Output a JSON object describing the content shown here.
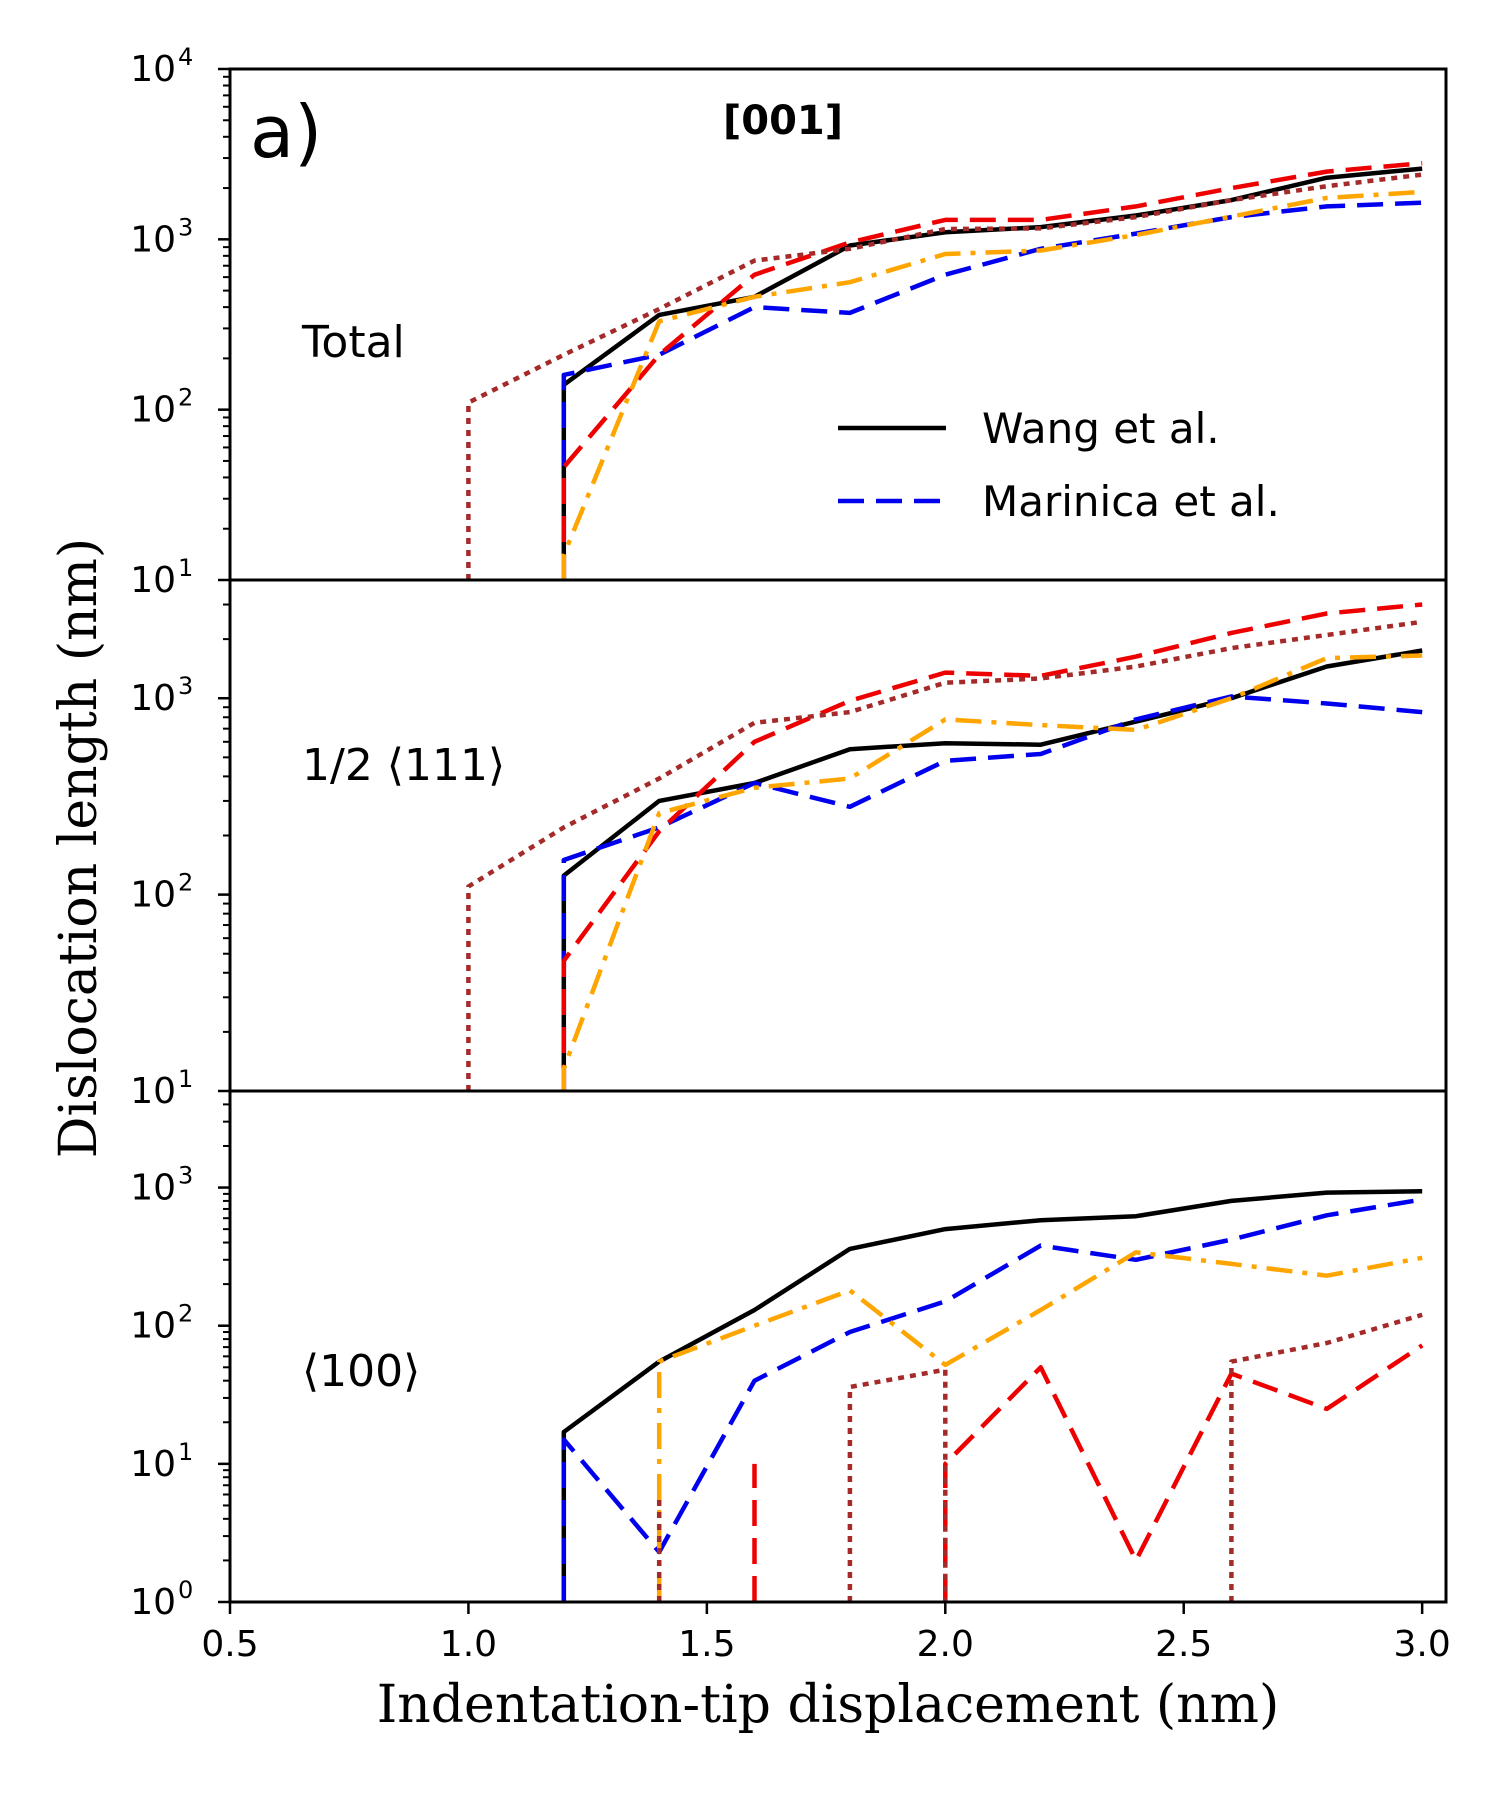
{
  "chart_data": {
    "type": "line",
    "figure_label": "a)",
    "title": "[001]",
    "xlabel": "Indentation-tip displacement (nm)",
    "ylabel": "Dislocation length (nm)",
    "xlim": [
      0.5,
      3.05
    ],
    "x_ticks": [
      "0.5",
      "1.0",
      "1.5",
      "2.0",
      "2.5",
      "3.0"
    ],
    "x_tick_values": [
      0.5,
      1.0,
      1.5,
      2.0,
      2.5,
      3.0
    ],
    "legend": {
      "placement": "center-right of top panel",
      "entries": [
        {
          "label": "Wang et al.",
          "series": "wang"
        },
        {
          "label": "Marinica et al.",
          "series": "marinica"
        }
      ]
    },
    "series_styles": {
      "wang": {
        "color": "#000000",
        "dash": "none"
      },
      "marinica": {
        "color": "#0000ee",
        "dash": "dashed"
      },
      "red": {
        "color": "#ee0000",
        "dash": "dashed"
      },
      "orange": {
        "color": "#ffa500",
        "dash": "dashdot"
      },
      "brown": {
        "color": "#a52a2a",
        "dash": "dotted"
      }
    },
    "panels": [
      {
        "label": "Total",
        "ylim": [
          10,
          10000
        ],
        "y_ticks": [
          {
            "base": "10",
            "exp": "1",
            "value": 10
          },
          {
            "base": "10",
            "exp": "2",
            "value": 100
          },
          {
            "base": "10",
            "exp": "3",
            "value": 1000
          },
          {
            "base": "10",
            "exp": "4",
            "value": 10000
          }
        ],
        "series": [
          {
            "key": "wang",
            "points": [
              [
                1.2,
                10
              ],
              [
                1.2,
                140
              ],
              [
                1.4,
                360
              ],
              [
                1.6,
                460
              ],
              [
                1.8,
                920
              ],
              [
                2.0,
                1100
              ],
              [
                2.2,
                1180
              ],
              [
                2.4,
                1380
              ],
              [
                2.6,
                1700
              ],
              [
                2.8,
                2300
              ],
              [
                3.0,
                2600
              ]
            ]
          },
          {
            "key": "marinica",
            "points": [
              [
                1.2,
                10
              ],
              [
                1.2,
                160
              ],
              [
                1.4,
                210
              ],
              [
                1.6,
                400
              ],
              [
                1.8,
                370
              ],
              [
                2.0,
                620
              ],
              [
                2.2,
                880
              ],
              [
                2.4,
                1080
              ],
              [
                2.6,
                1350
              ],
              [
                2.8,
                1560
              ],
              [
                3.0,
                1640
              ]
            ]
          },
          {
            "key": "red",
            "points": [
              [
                1.2,
                10
              ],
              [
                1.2,
                46
              ],
              [
                1.4,
                210
              ],
              [
                1.6,
                620
              ],
              [
                1.8,
                960
              ],
              [
                2.0,
                1300
              ],
              [
                2.2,
                1300
              ],
              [
                2.4,
                1560
              ],
              [
                2.6,
                2000
              ],
              [
                2.8,
                2500
              ],
              [
                3.0,
                2800
              ]
            ]
          },
          {
            "key": "orange",
            "points": [
              [
                1.2,
                10
              ],
              [
                1.2,
                14
              ],
              [
                1.4,
                330
              ],
              [
                1.6,
                460
              ],
              [
                1.8,
                560
              ],
              [
                2.0,
                820
              ],
              [
                2.2,
                860
              ],
              [
                2.4,
                1060
              ],
              [
                2.6,
                1360
              ],
              [
                2.8,
                1750
              ],
              [
                3.0,
                1900
              ]
            ]
          },
          {
            "key": "brown",
            "points": [
              [
                1.0,
                10
              ],
              [
                1.0,
                110
              ],
              [
                1.2,
                210
              ],
              [
                1.4,
                390
              ],
              [
                1.6,
                750
              ],
              [
                1.8,
                880
              ],
              [
                2.0,
                1150
              ],
              [
                2.2,
                1160
              ],
              [
                2.4,
                1350
              ],
              [
                2.6,
                1700
              ],
              [
                2.8,
                2050
              ],
              [
                3.0,
                2400
              ]
            ]
          }
        ]
      },
      {
        "label": "1/2 ⟨111⟩",
        "ylim": [
          10,
          4000
        ],
        "y_ticks": [
          {
            "base": "10",
            "exp": "1",
            "value": 10
          },
          {
            "base": "10",
            "exp": "2",
            "value": 100
          },
          {
            "base": "10",
            "exp": "3",
            "value": 1000
          }
        ],
        "series": [
          {
            "key": "wang",
            "points": [
              [
                1.2,
                10
              ],
              [
                1.2,
                125
              ],
              [
                1.4,
                300
              ],
              [
                1.6,
                370
              ],
              [
                1.8,
                550
              ],
              [
                2.0,
                590
              ],
              [
                2.2,
                580
              ],
              [
                2.4,
                760
              ],
              [
                2.6,
                1000
              ],
              [
                2.8,
                1450
              ],
              [
                3.0,
                1750
              ]
            ]
          },
          {
            "key": "marinica",
            "points": [
              [
                1.2,
                10
              ],
              [
                1.2,
                150
              ],
              [
                1.4,
                220
              ],
              [
                1.6,
                370
              ],
              [
                1.8,
                280
              ],
              [
                2.0,
                480
              ],
              [
                2.2,
                520
              ],
              [
                2.4,
                780
              ],
              [
                2.6,
                1020
              ],
              [
                2.8,
                940
              ],
              [
                3.0,
                850
              ]
            ]
          },
          {
            "key": "red",
            "points": [
              [
                1.2,
                10
              ],
              [
                1.2,
                46
              ],
              [
                1.4,
                210
              ],
              [
                1.6,
                600
              ],
              [
                1.8,
                970
              ],
              [
                2.0,
                1350
              ],
              [
                2.2,
                1300
              ],
              [
                2.4,
                1630
              ],
              [
                2.6,
                2150
              ],
              [
                2.8,
                2700
              ],
              [
                3.0,
                3000
              ]
            ]
          },
          {
            "key": "orange",
            "points": [
              [
                1.2,
                10
              ],
              [
                1.2,
                13
              ],
              [
                1.4,
                260
              ],
              [
                1.6,
                350
              ],
              [
                1.8,
                390
              ],
              [
                2.0,
                780
              ],
              [
                2.2,
                730
              ],
              [
                2.4,
                690
              ],
              [
                2.6,
                1000
              ],
              [
                2.8,
                1600
              ],
              [
                3.0,
                1650
              ]
            ]
          },
          {
            "key": "brown",
            "points": [
              [
                1.0,
                10
              ],
              [
                1.0,
                110
              ],
              [
                1.2,
                220
              ],
              [
                1.4,
                390
              ],
              [
                1.6,
                750
              ],
              [
                1.8,
                850
              ],
              [
                2.0,
                1200
              ],
              [
                2.2,
                1260
              ],
              [
                2.4,
                1450
              ],
              [
                2.6,
                1800
              ],
              [
                2.8,
                2100
              ],
              [
                3.0,
                2450
              ]
            ]
          }
        ]
      },
      {
        "label": "⟨100⟩",
        "ylim": [
          1,
          5000
        ],
        "y_ticks": [
          {
            "base": "10",
            "exp": "0",
            "value": 1
          },
          {
            "base": "10",
            "exp": "1",
            "value": 10
          },
          {
            "base": "10",
            "exp": "2",
            "value": 100
          },
          {
            "base": "10",
            "exp": "3",
            "value": 1000
          }
        ],
        "series": [
          {
            "key": "wang",
            "points": [
              [
                1.2,
                1
              ],
              [
                1.2,
                17
              ],
              [
                1.4,
                55
              ],
              [
                1.6,
                130
              ],
              [
                1.8,
                360
              ],
              [
                2.0,
                500
              ],
              [
                2.2,
                580
              ],
              [
                2.4,
                620
              ],
              [
                2.6,
                800
              ],
              [
                2.8,
                920
              ],
              [
                3.0,
                940
              ]
            ]
          },
          {
            "key": "marinica",
            "points": [
              [
                1.2,
                1
              ],
              [
                1.2,
                15
              ],
              [
                1.4,
                2.3
              ],
              [
                1.6,
                40
              ],
              [
                1.8,
                90
              ],
              [
                2.0,
                150
              ],
              [
                2.2,
                380
              ],
              [
                2.4,
                300
              ],
              [
                2.6,
                420
              ],
              [
                2.8,
                630
              ],
              [
                3.0,
                820
              ]
            ]
          },
          {
            "key": "orange",
            "points": [
              [
                1.4,
                1
              ],
              [
                1.4,
                55
              ],
              [
                1.6,
                100
              ],
              [
                1.8,
                180
              ],
              [
                2.0,
                52
              ],
              [
                2.2,
                130
              ],
              [
                2.4,
                340
              ],
              [
                2.6,
                280
              ],
              [
                2.8,
                230
              ],
              [
                3.0,
                310
              ]
            ]
          },
          {
            "key": "red",
            "segments": [
              [
                [
                  1.6,
                  1
                ],
                [
                  1.6,
                  10
                ]
              ],
              [
                [
                  2.0,
                  1
                ],
                [
                  2.0,
                  10
                ],
                [
                  2.2,
                  50
                ],
                [
                  2.4,
                  2
                ],
                [
                  2.6,
                  45
                ],
                [
                  2.8,
                  25
                ],
                [
                  3.0,
                  72
                ]
              ]
            ]
          },
          {
            "key": "brown",
            "segments": [
              [
                [
                  1.4,
                  1
                ],
                [
                  1.4,
                  6
                ]
              ],
              [
                [
                  1.8,
                  1
                ],
                [
                  1.8,
                  36
                ],
                [
                  2.0,
                  48
                ],
                [
                  2.0,
                  1
                ]
              ],
              [
                [
                  2.6,
                  1
                ],
                [
                  2.6,
                  55
                ],
                [
                  2.8,
                  75
                ],
                [
                  3.0,
                  120
                ]
              ]
            ]
          }
        ]
      }
    ]
  }
}
